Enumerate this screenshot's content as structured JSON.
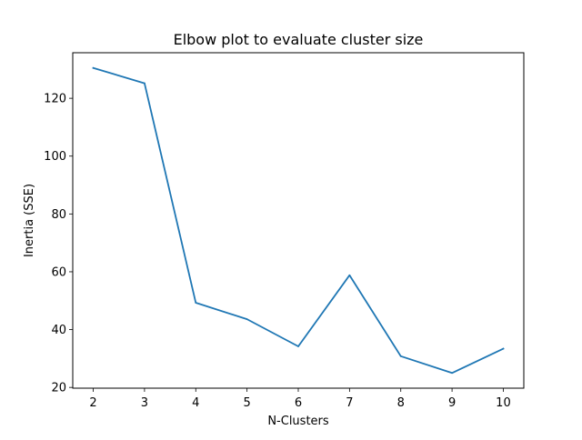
{
  "chart_data": {
    "type": "line",
    "title": "Elbow plot to evaluate cluster size",
    "xlabel": "N-Clusters",
    "ylabel": "Inertia (SSE)",
    "x": [
      2,
      3,
      4,
      5,
      6,
      7,
      8,
      9,
      10
    ],
    "series": [
      {
        "values": [
          130.5,
          125.2,
          49.3,
          43.6,
          34.2,
          58.8,
          30.8,
          25.0,
          33.4
        ],
        "color": "#1f77b4"
      }
    ],
    "xlim": [
      1.6,
      10.4
    ],
    "ylim": [
      19.74,
      135.76
    ],
    "xticks": [
      "2",
      "3",
      "4",
      "5",
      "6",
      "7",
      "8",
      "9",
      "10"
    ],
    "yticks": [
      "20",
      "40",
      "60",
      "80",
      "100",
      "120"
    ],
    "grid": false,
    "legend": "none"
  }
}
